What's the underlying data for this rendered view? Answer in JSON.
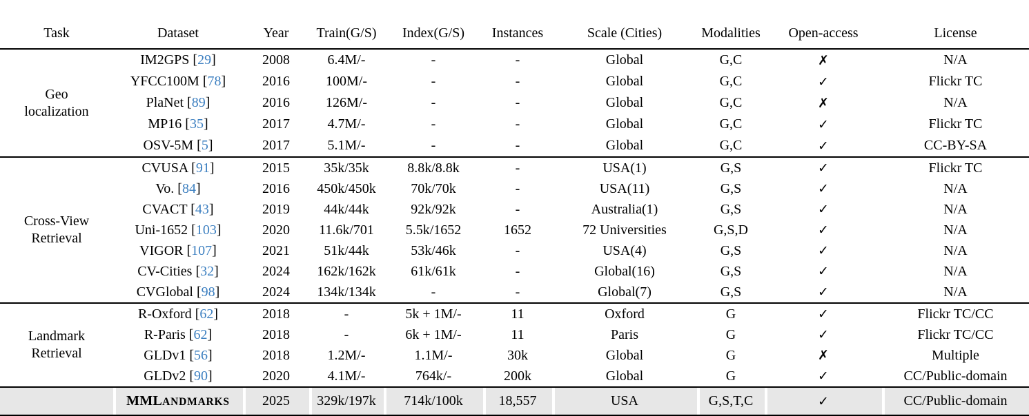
{
  "colors": {
    "citation_blue": "#3c7fc0",
    "highlight_gray": "#e7e7e7",
    "rule_black": "#000000"
  },
  "table": {
    "columns": [
      "Task",
      "Dataset",
      "Year",
      "Train(G/S)",
      "Index(G/S)",
      "Instances",
      "Scale (Cities)",
      "Modalities",
      "Open-access",
      "License"
    ],
    "symbols": {
      "check": "✓",
      "cross": "✗"
    },
    "groups": [
      {
        "task_lines": [
          "Geo",
          "localization"
        ],
        "rows": [
          {
            "dataset": "IM2GPS",
            "ref": "29",
            "year": "2008",
            "train": "6.4M/-",
            "index": "-",
            "instances": "-",
            "scale": "Global",
            "modalities": "G,C",
            "open_access": "no",
            "license": "N/A"
          },
          {
            "dataset": "YFCC100M",
            "ref": "78",
            "year": "2016",
            "train": "100M/-",
            "index": "-",
            "instances": "-",
            "scale": "Global",
            "modalities": "G,C",
            "open_access": "yes",
            "license": "Flickr TC"
          },
          {
            "dataset": "PlaNet",
            "ref": "89",
            "year": "2016",
            "train": "126M/-",
            "index": "-",
            "instances": "-",
            "scale": "Global",
            "modalities": "G,C",
            "open_access": "no",
            "license": "N/A"
          },
          {
            "dataset": "MP16",
            "ref": "35",
            "year": "2017",
            "train": "4.7M/-",
            "index": "-",
            "instances": "-",
            "scale": "Global",
            "modalities": "G,C",
            "open_access": "yes",
            "license": "Flickr TC"
          },
          {
            "dataset": "OSV-5M",
            "ref": "5",
            "year": "2017",
            "train": "5.1M/-",
            "index": "-",
            "instances": "-",
            "scale": "Global",
            "modalities": "G,C",
            "open_access": "yes",
            "license": "CC-BY-SA"
          }
        ]
      },
      {
        "task_lines": [
          "Cross-View",
          "Retrieval"
        ],
        "rows": [
          {
            "dataset": "CVUSA",
            "ref": "91",
            "year": "2015",
            "train": "35k/35k",
            "index": "8.8k/8.8k",
            "instances": "-",
            "scale": "USA(1)",
            "modalities": "G,S",
            "open_access": "yes",
            "license": "Flickr TC"
          },
          {
            "dataset": "Vo.",
            "ref": "84",
            "year": "2016",
            "train": "450k/450k",
            "index": "70k/70k",
            "instances": "-",
            "scale": "USA(11)",
            "modalities": "G,S",
            "open_access": "yes",
            "license": "N/A"
          },
          {
            "dataset": "CVACT",
            "ref": "43",
            "year": "2019",
            "train": "44k/44k",
            "index": "92k/92k",
            "instances": "-",
            "scale": "Australia(1)",
            "modalities": "G,S",
            "open_access": "yes",
            "license": "N/A"
          },
          {
            "dataset": "Uni-1652",
            "ref": "103",
            "year": "2020",
            "train": "11.6k/701",
            "index": "5.5k/1652",
            "instances": "1652",
            "scale": "72 Universities",
            "modalities": "G,S,D",
            "open_access": "yes",
            "license": "N/A"
          },
          {
            "dataset": "VIGOR",
            "ref": "107",
            "year": "2021",
            "train": "51k/44k",
            "index": "53k/46k",
            "instances": "-",
            "scale": "USA(4)",
            "modalities": "G,S",
            "open_access": "yes",
            "license": "N/A"
          },
          {
            "dataset": "CV-Cities",
            "ref": "32",
            "year": "2024",
            "train": "162k/162k",
            "index": "61k/61k",
            "instances": "-",
            "scale": "Global(16)",
            "modalities": "G,S",
            "open_access": "yes",
            "license": "N/A"
          },
          {
            "dataset": "CVGlobal",
            "ref": "98",
            "year": "2024",
            "train": "134k/134k",
            "index": "-",
            "instances": "-",
            "scale": "Global(7)",
            "modalities": "G,S",
            "open_access": "yes",
            "license": "N/A"
          }
        ]
      },
      {
        "task_lines": [
          "Landmark",
          "Retrieval"
        ],
        "rows": [
          {
            "dataset": "R-Oxford",
            "ref": "62",
            "year": "2018",
            "train": "-",
            "index": "5k + 1M/-",
            "instances": "11",
            "scale": "Oxford",
            "modalities": "G",
            "open_access": "yes",
            "license": "Flickr TC/CC"
          },
          {
            "dataset": "R-Paris",
            "ref": "62",
            "year": "2018",
            "train": "-",
            "index": "6k + 1M/-",
            "instances": "11",
            "scale": "Paris",
            "modalities": "G",
            "open_access": "yes",
            "license": "Flickr TC/CC"
          },
          {
            "dataset": "GLDv1",
            "ref": "56",
            "year": "2018",
            "train": "1.2M/-",
            "index": "1.1M/-",
            "instances": "30k",
            "scale": "Global",
            "modalities": "G",
            "open_access": "no",
            "license": "Multiple"
          },
          {
            "dataset": "GLDv2",
            "ref": "90",
            "year": "2020",
            "train": "4.1M/-",
            "index": "764k/-",
            "instances": "200k",
            "scale": "Global",
            "modalities": "G",
            "open_access": "yes",
            "license": "CC/Public-domain"
          }
        ]
      }
    ],
    "highlight_row": {
      "task": "",
      "dataset_lead": "MML",
      "dataset_rest": "ANDMARKS",
      "year": "2025",
      "train": "329k/197k",
      "index": "714k/100k",
      "instances": "18,557",
      "scale": "USA",
      "modalities": "G,S,T,C",
      "open_access": "yes",
      "license": "CC/Public-domain"
    }
  }
}
